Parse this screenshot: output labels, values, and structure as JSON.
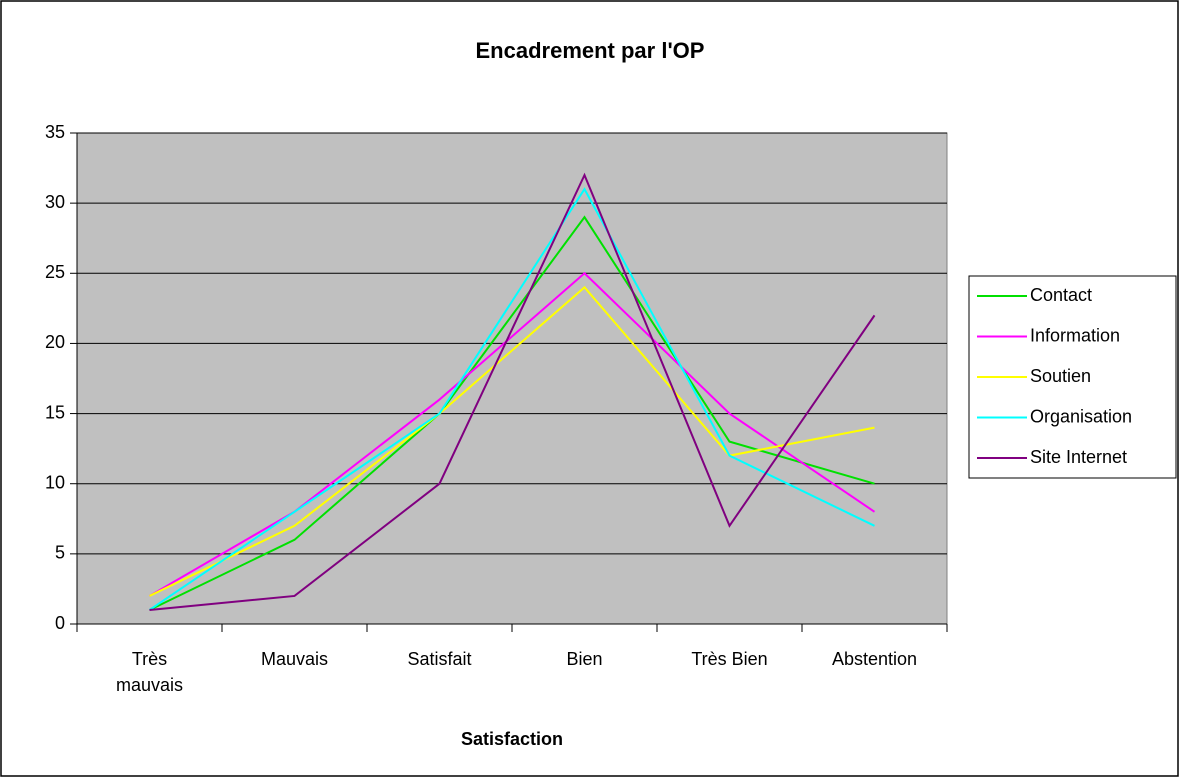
{
  "chart_data": {
    "type": "line",
    "title": "Encadrement par l'OP",
    "x_label": "Satisfaction",
    "categories": [
      "Très mauvais",
      "Mauvais",
      "Satisfait",
      "Bien",
      "Très Bien",
      "Abstention"
    ],
    "series": [
      {
        "name": "Contact",
        "color": "#00e000",
        "values": [
          1,
          6,
          15,
          29,
          13,
          10
        ]
      },
      {
        "name": "Information",
        "color": "#ff00ff",
        "values": [
          2,
          8,
          16,
          25,
          15,
          8
        ]
      },
      {
        "name": "Soutien",
        "color": "#ffff00",
        "values": [
          2,
          7,
          15,
          24,
          12,
          14
        ]
      },
      {
        "name": "Organisation",
        "color": "#00ffff",
        "values": [
          1,
          8,
          15,
          31,
          12,
          7
        ]
      },
      {
        "name": "Site Internet",
        "color": "#800080",
        "values": [
          1,
          2,
          10,
          32,
          7,
          22
        ]
      }
    ],
    "ylim": [
      0,
      35
    ],
    "yticks": [
      0,
      5,
      10,
      15,
      20,
      25,
      30,
      35
    ],
    "grid": true,
    "legend": "right",
    "plot_background": "#c0c0c0"
  }
}
